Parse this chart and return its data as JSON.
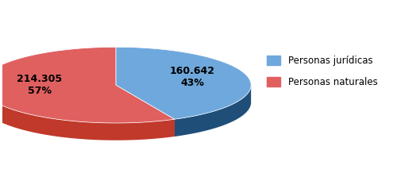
{
  "values": [
    160642,
    214305
  ],
  "colors_top": [
    "#6FA8DC",
    "#E06060"
  ],
  "colors_side": [
    "#1F4E79",
    "#C0392B"
  ],
  "text_labels": [
    "160.642\n43%",
    "214.305\n57%"
  ],
  "background_color": "#FFFFFF",
  "legend_labels": [
    "Personas jurídicas",
    "Personas naturales"
  ],
  "figsize": [
    5.0,
    2.23
  ],
  "dpi": 100
}
